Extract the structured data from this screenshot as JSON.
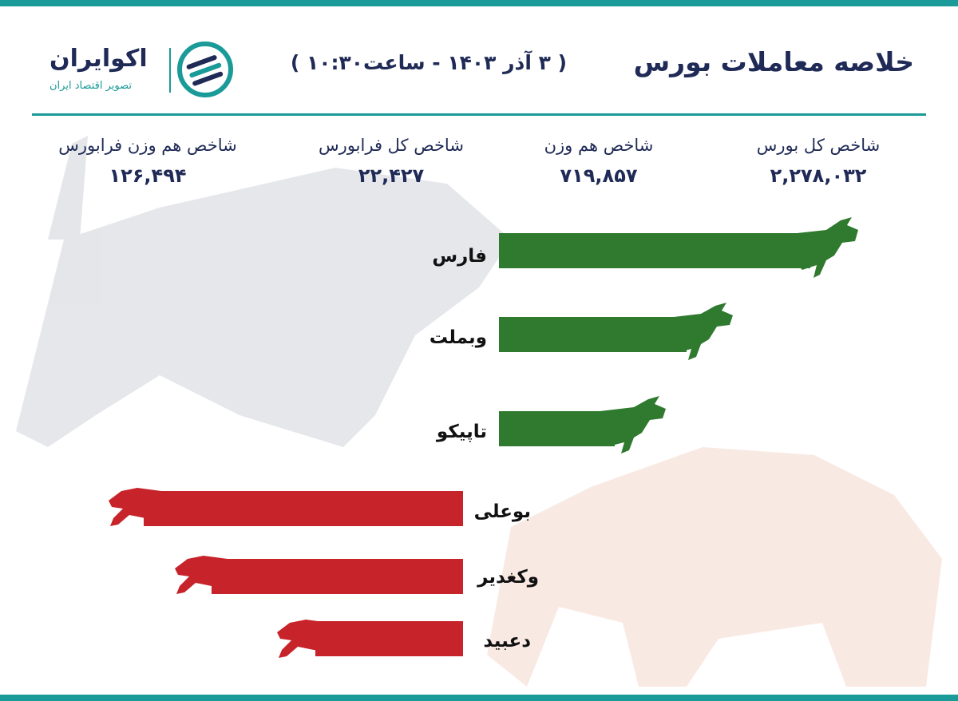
{
  "header": {
    "title": "خلاصه معاملات بورس",
    "subtitle": "( ۳ آذر ۱۴۰۳ - ساعت۱۰:۳۰ )",
    "brand": "اکوایران",
    "tagline": "تصویر اقتصاد ایران"
  },
  "indices": [
    {
      "label": "شاخص کل بورس",
      "value": "۲,۲۷۸,۰۳۲"
    },
    {
      "label": "شاخص هم وزن",
      "value": "۷۱۹,۸۵۷"
    },
    {
      "label": "شاخص کل فرابورس",
      "value": "۲۲,۴۲۷"
    },
    {
      "label": "شاخص هم وزن فرابورس",
      "value": "۱۲۶,۴۹۴"
    }
  ],
  "gainers": [
    "فارس",
    "وبملت",
    "تاپیکو"
  ],
  "losers": [
    "بوعلی",
    "وکغدیر",
    "دعبید"
  ]
}
